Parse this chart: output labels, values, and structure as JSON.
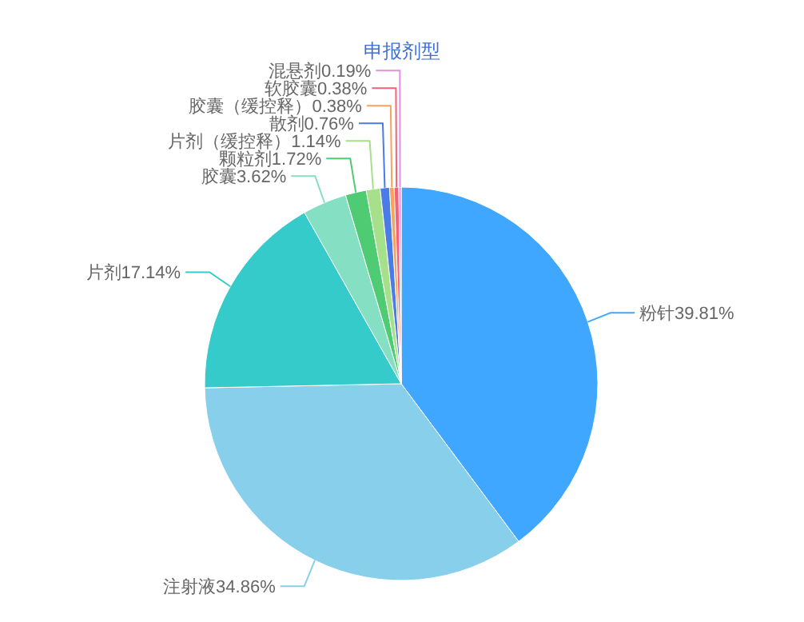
{
  "chart_data": {
    "type": "pie",
    "title": "申报剂型",
    "categories": [
      "粉针",
      "注射液",
      "片剂",
      "胶囊",
      "颗粒剂",
      "片剂（缓控释）",
      "散剂",
      "胶囊（缓控释）",
      "软胶囊",
      "混悬剂"
    ],
    "values": [
      39.81,
      34.86,
      17.14,
      3.62,
      1.72,
      1.14,
      0.76,
      0.38,
      0.38,
      0.19
    ],
    "colors": [
      "#3fa7ff",
      "#87cfea",
      "#36cbcb",
      "#85dfc2",
      "#4ecb73",
      "#a6e08a",
      "#4a7be6",
      "#f7a35c",
      "#f2637b",
      "#e38fdb"
    ],
    "value_labels": [
      "39.81%",
      "34.86%",
      "17.14%",
      "3.62%",
      "1.72%",
      "1.14%",
      "0.76%",
      "0.38%",
      "0.38%",
      "0.19%"
    ]
  }
}
